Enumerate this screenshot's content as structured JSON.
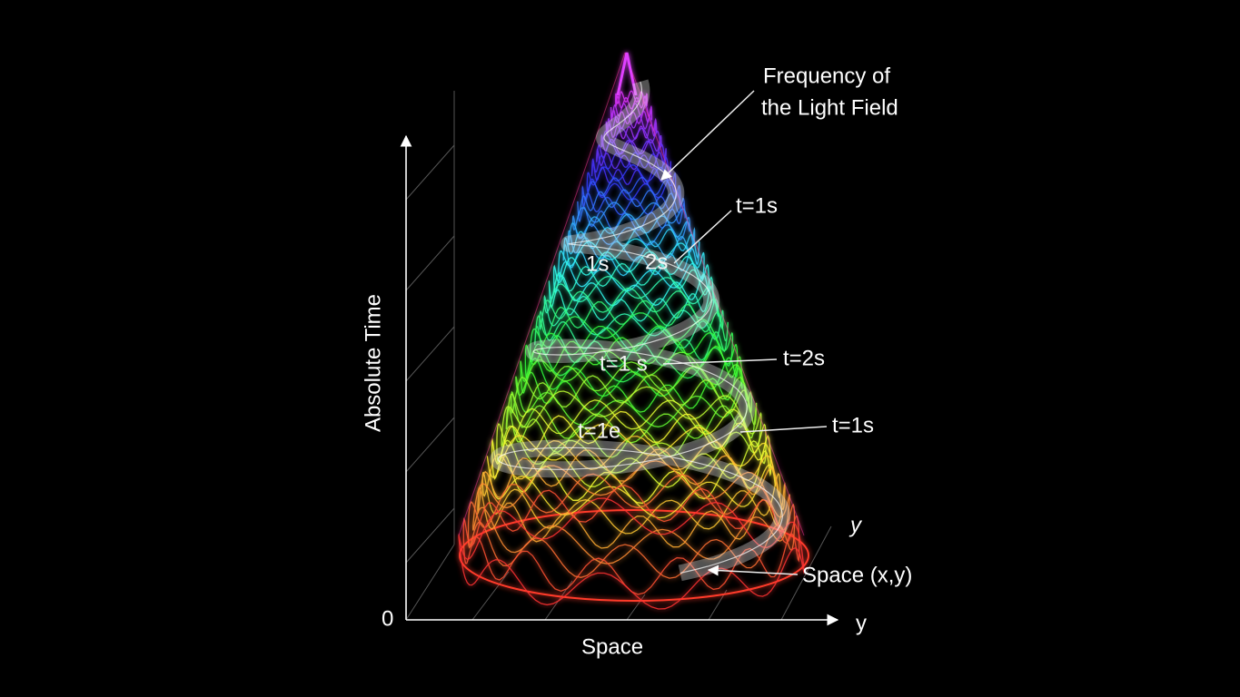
{
  "diagram": {
    "title": {
      "line1": "Frequency of",
      "line2": "the Light Field"
    },
    "labels": {
      "outer_top": "t=1s",
      "outer_middle": "t=2s",
      "outer_bottom": "t=1s",
      "inner_1s": "1s",
      "inner_2s": "2s",
      "inner_middle": "t=1 s",
      "inner_bottom": "t=1e",
      "space_xy": "Space (x,y)",
      "depth_y": "y"
    },
    "axes": {
      "vertical": "Absolute Time",
      "origin": "0",
      "horizontal": "Space",
      "horizontal_end": "y"
    }
  }
}
